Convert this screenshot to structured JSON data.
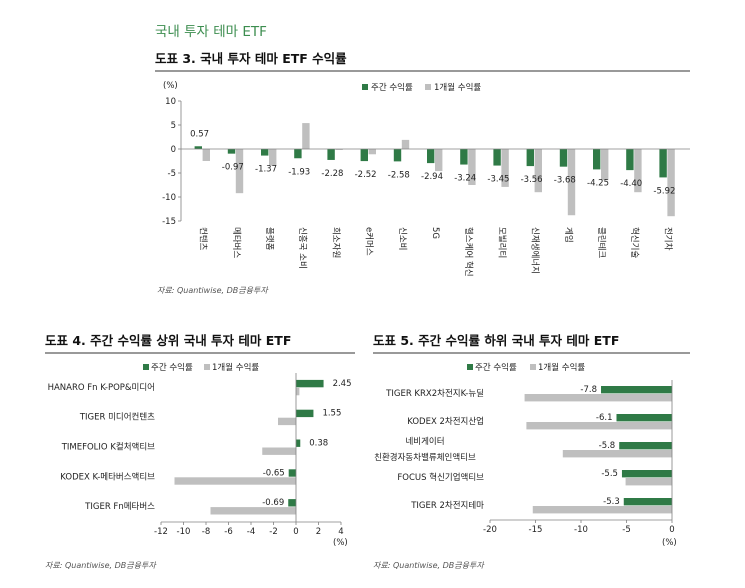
{
  "page": {
    "section_title": "국내 투자 테마 ETF",
    "section_title_color": "#3c8d4f"
  },
  "chart_data": [
    {
      "title": "도표 3. 국내 투자 테마 ETF 수익률",
      "type": "bar",
      "orientation": "vertical",
      "unit": "(%)",
      "categories": [
        "컨텐츠",
        "메타버스",
        "플랫폼",
        "신흥국 소비",
        "희소자원",
        "e커머스",
        "신소비",
        "5G",
        "헬스케어 혁신",
        "모빌리티",
        "신재생에너지",
        "게임",
        "클린테크",
        "혁신기술",
        "전기차"
      ],
      "series": [
        {
          "name": "주간 수익률",
          "color": "#2f7a46",
          "values": [
            0.57,
            -0.97,
            -1.37,
            -1.93,
            -2.28,
            -2.52,
            -2.58,
            -2.94,
            -3.24,
            -3.45,
            -3.56,
            -3.68,
            -4.25,
            -4.4,
            -5.92
          ],
          "data_labels": [
            "0.57",
            "-0.97",
            "-1.37",
            "-1.93",
            "-2.28",
            "-2.52",
            "-2.58",
            "-2.94",
            "-3.24",
            "-3.45",
            "-3.56",
            "-3.68",
            "-4.25",
            "-4.40",
            "-5.92"
          ]
        },
        {
          "name": "1개월 수익률",
          "color": "#bfbfbf",
          "values": [
            -2.5,
            -9.2,
            -3.5,
            5.4,
            -0.2,
            -1.1,
            1.9,
            -4.6,
            -7.5,
            -7.9,
            -9.0,
            -13.8,
            -6.5,
            -9.0,
            -14.0
          ]
        }
      ],
      "ylim": [
        -15,
        10
      ],
      "yticks": [
        10,
        5,
        0,
        -5,
        -10,
        -15
      ],
      "legend": "top",
      "grid": false,
      "source": "자료: Quantiwise, DB금융투자"
    },
    {
      "title": "도표 4. 주간 수익률 상위 국내 투자 테마 ETF",
      "type": "bar",
      "orientation": "horizontal",
      "unit": "(%)",
      "categories": [
        "HANARO Fn K-POP&미디어",
        "TIGER 미디어컨텐츠",
        "TIMEFOLIO K컬처액티브",
        "KODEX K-메타버스액티브",
        "TIGER Fn메타버스"
      ],
      "series": [
        {
          "name": "주간 수익률",
          "color": "#2f7a46",
          "values": [
            2.45,
            1.55,
            0.38,
            -0.65,
            -0.69
          ],
          "data_labels": [
            "2.45",
            "1.55",
            "0.38",
            "-0.65",
            "-0.69"
          ]
        },
        {
          "name": "1개월 수익률",
          "color": "#bfbfbf",
          "values": [
            0.3,
            -1.6,
            -3.0,
            -10.8,
            -7.6
          ]
        }
      ],
      "xlim": [
        -12,
        4
      ],
      "xticks": [
        -12,
        -10,
        -8,
        -6,
        -4,
        -2,
        0,
        2,
        4
      ],
      "legend": "top",
      "grid": false,
      "source": "자료: Quantiwise, DB금융투자"
    },
    {
      "title": "도표 5. 주간 수익률 하위 국내 투자 테마 ETF",
      "type": "bar",
      "orientation": "horizontal",
      "unit": "(%)",
      "categories": [
        "TIGER KRX2차전지K-뉴딜",
        "KODEX 2차전지산업",
        "네비게이터\n친환경자동차밸류체인액티브",
        "FOCUS 혁신기업액티브",
        "TIGER 2차전지테마"
      ],
      "series": [
        {
          "name": "주간 수익률",
          "color": "#2f7a46",
          "values": [
            -7.8,
            -6.1,
            -5.8,
            -5.5,
            -5.3
          ],
          "data_labels": [
            "-7.8",
            "-6.1",
            "-5.8",
            "-5.5",
            "-5.3"
          ]
        },
        {
          "name": "1개월 수익률",
          "color": "#bfbfbf",
          "values": [
            -16.2,
            -16.0,
            -12.0,
            -5.1,
            -15.3
          ]
        }
      ],
      "xlim": [
        -20,
        0
      ],
      "xticks": [
        -20,
        -15,
        -10,
        -5,
        0
      ],
      "legend": "top",
      "grid": false,
      "source": "자료: Quantiwise, DB금융투자"
    }
  ]
}
